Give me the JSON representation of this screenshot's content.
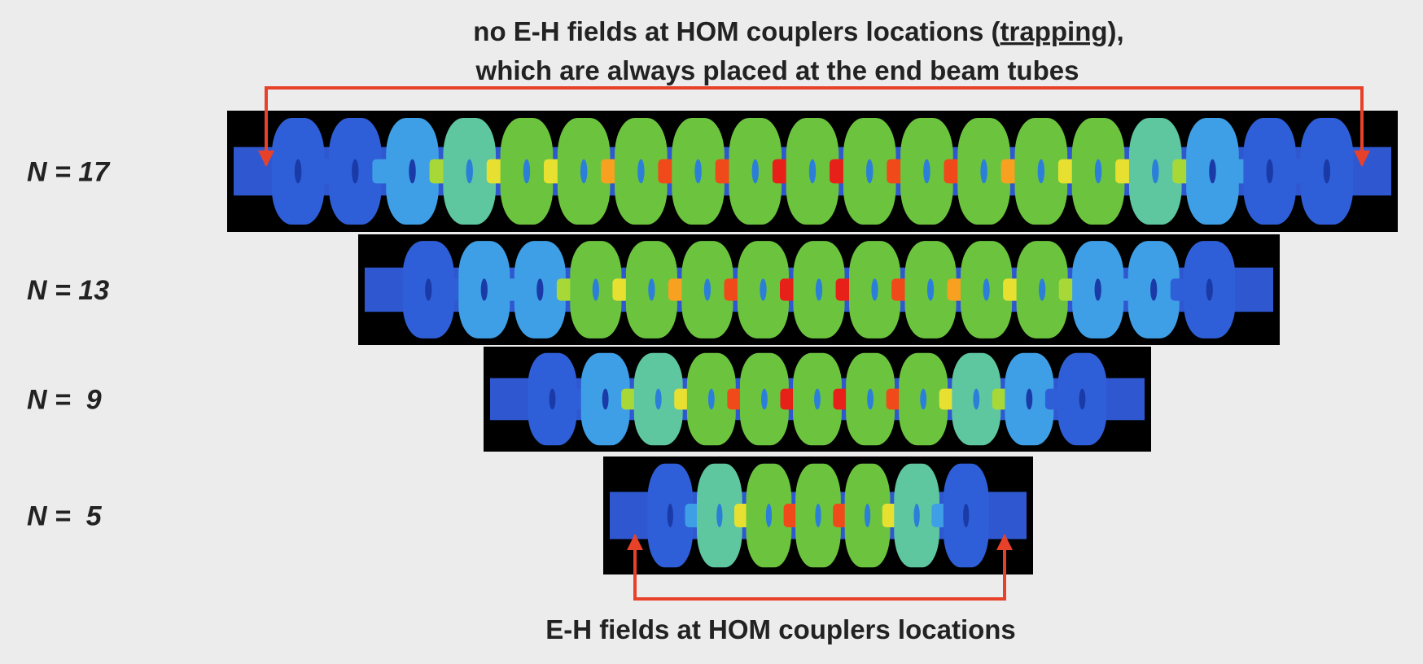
{
  "top_note": {
    "line1_before": "no E-H fields at HOM couplers locations (",
    "line1_underlined": "trapping",
    "line1_after": "),",
    "line2": "which are always placed at the end beam tubes"
  },
  "rows": [
    {
      "label": "N = 17"
    },
    {
      "label": "N = 13"
    },
    {
      "label": "N =  9"
    },
    {
      "label": "N =  5"
    }
  ],
  "bottom_note": "E-H fields at HOM couplers locations"
}
